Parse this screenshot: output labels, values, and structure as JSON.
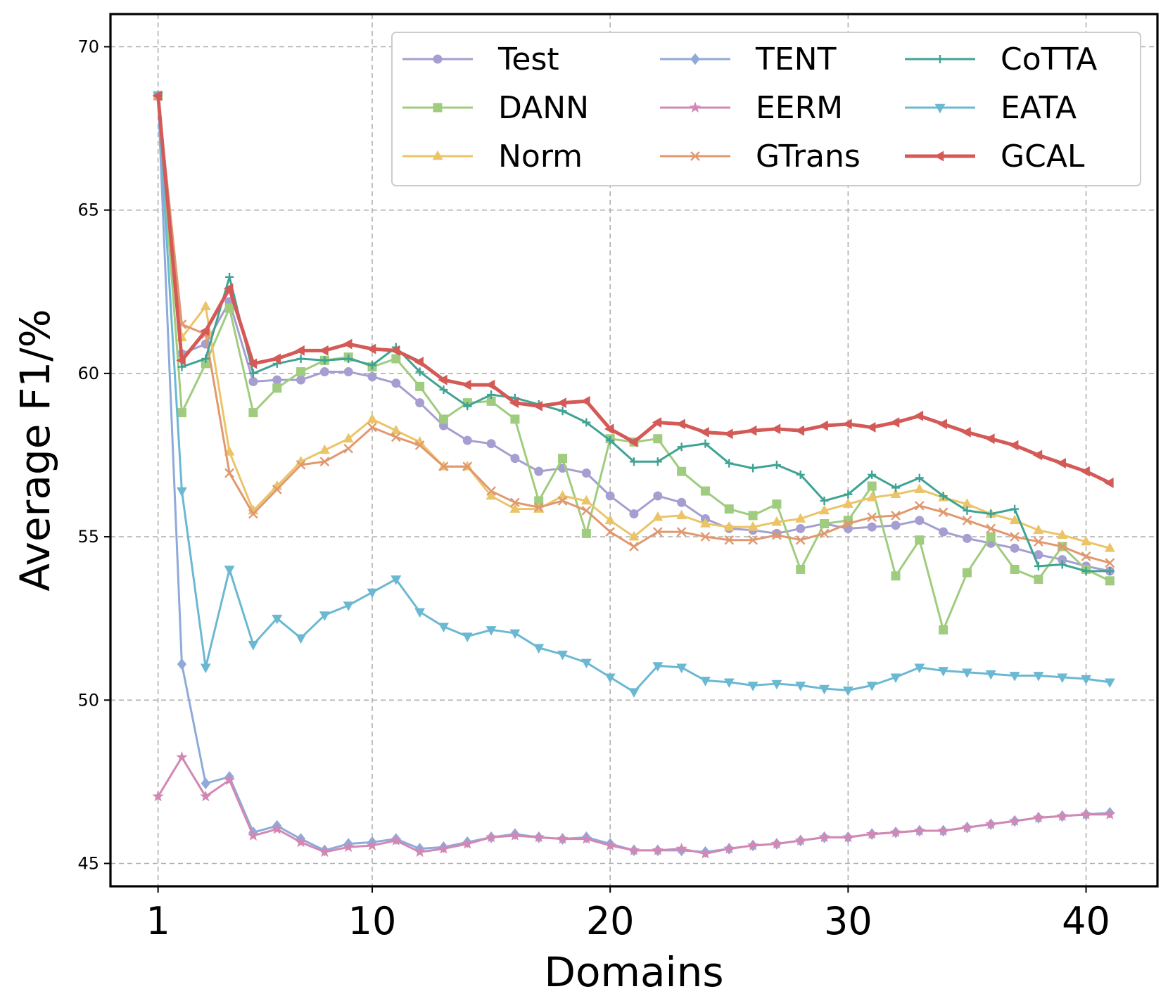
{
  "chart_data": {
    "type": "line",
    "title": "",
    "xlabel": "Domains",
    "ylabel": "Average F1/%",
    "xlim": [
      -1,
      43
    ],
    "ylim": [
      44.3,
      71
    ],
    "xticks": [
      1,
      10,
      20,
      30,
      40
    ],
    "xtick_labels": [
      "1",
      "10",
      "20",
      "30",
      "40"
    ],
    "yticks": [
      45,
      50,
      55,
      60,
      65,
      70
    ],
    "ytick_labels": [
      "45",
      "50",
      "55",
      "60",
      "65",
      "70"
    ],
    "grid": true,
    "legend_position": "top-right",
    "legend_columns": 3,
    "x": [
      1,
      2,
      3,
      4,
      5,
      6,
      7,
      8,
      9,
      10,
      11,
      12,
      13,
      14,
      15,
      16,
      17,
      18,
      19,
      20,
      21,
      22,
      23,
      24,
      25,
      26,
      27,
      28,
      29,
      30,
      31,
      32,
      33,
      34,
      35,
      36,
      37,
      38,
      39,
      40,
      41
    ],
    "series": [
      {
        "name": "Test",
        "color": "#a59ed0",
        "marker": "circle",
        "width": 3,
        "values": [
          68.5,
          60.6,
          60.9,
          62.2,
          59.75,
          59.8,
          59.8,
          60.05,
          60.05,
          59.9,
          59.7,
          59.1,
          58.4,
          57.95,
          57.85,
          57.4,
          57.0,
          57.1,
          56.95,
          56.25,
          55.7,
          56.25,
          56.05,
          55.55,
          55.25,
          55.2,
          55.1,
          55.25,
          55.4,
          55.25,
          55.3,
          55.35,
          55.5,
          55.15,
          54.95,
          54.8,
          54.65,
          54.45,
          54.3,
          54.1,
          53.95
        ]
      },
      {
        "name": "DANN",
        "color": "#9fcc7e",
        "marker": "square",
        "width": 3,
        "values": [
          68.5,
          58.8,
          60.3,
          62.0,
          58.8,
          59.55,
          60.05,
          60.4,
          60.5,
          60.2,
          60.45,
          59.6,
          58.6,
          59.1,
          59.15,
          58.6,
          56.1,
          57.4,
          55.1,
          58.0,
          57.9,
          58.0,
          57.0,
          56.4,
          55.85,
          55.65,
          56.0,
          54.0,
          55.4,
          55.5,
          56.55,
          53.8,
          54.9,
          52.15,
          53.9,
          55.0,
          54.0,
          53.7,
          54.7,
          54.0,
          53.65
        ]
      },
      {
        "name": "Norm",
        "color": "#ebc468",
        "marker": "triangle-up",
        "width": 3,
        "values": [
          68.5,
          61.1,
          62.05,
          57.6,
          55.8,
          56.55,
          57.3,
          57.65,
          58.0,
          58.6,
          58.25,
          57.9,
          57.15,
          57.15,
          56.25,
          55.85,
          55.85,
          56.25,
          56.1,
          55.5,
          55.0,
          55.6,
          55.65,
          55.4,
          55.3,
          55.3,
          55.45,
          55.55,
          55.8,
          56.0,
          56.2,
          56.3,
          56.45,
          56.2,
          56.0,
          55.7,
          55.5,
          55.2,
          55.05,
          54.85,
          54.65
        ]
      },
      {
        "name": "TENT",
        "color": "#8faad9",
        "marker": "diamond",
        "width": 3,
        "values": [
          68.5,
          51.1,
          47.45,
          47.65,
          45.95,
          46.15,
          45.75,
          45.4,
          45.6,
          45.65,
          45.75,
          45.45,
          45.5,
          45.65,
          45.8,
          45.9,
          45.8,
          45.75,
          45.8,
          45.6,
          45.4,
          45.4,
          45.4,
          45.35,
          45.45,
          45.55,
          45.6,
          45.7,
          45.8,
          45.8,
          45.9,
          45.95,
          46.0,
          46.0,
          46.1,
          46.2,
          46.3,
          46.4,
          46.45,
          46.5,
          46.55
        ]
      },
      {
        "name": "EERM",
        "color": "#d288b4",
        "marker": "star",
        "width": 3,
        "values": [
          47.05,
          48.25,
          47.05,
          47.55,
          45.85,
          46.05,
          45.65,
          45.35,
          45.5,
          45.55,
          45.7,
          45.35,
          45.45,
          45.6,
          45.8,
          45.85,
          45.8,
          45.75,
          45.75,
          45.55,
          45.4,
          45.4,
          45.45,
          45.3,
          45.45,
          45.55,
          45.6,
          45.7,
          45.8,
          45.8,
          45.9,
          45.95,
          46.0,
          46.0,
          46.1,
          46.2,
          46.3,
          46.4,
          46.45,
          46.5,
          46.5
        ]
      },
      {
        "name": "GTrans",
        "color": "#e09870",
        "marker": "x",
        "width": 3,
        "values": [
          68.5,
          61.5,
          61.2,
          56.95,
          55.7,
          56.45,
          57.2,
          57.3,
          57.7,
          58.35,
          58.05,
          57.8,
          57.15,
          57.15,
          56.4,
          56.05,
          55.9,
          56.1,
          55.8,
          55.15,
          54.7,
          55.15,
          55.15,
          55.0,
          54.9,
          54.9,
          55.05,
          54.9,
          55.1,
          55.4,
          55.6,
          55.65,
          55.95,
          55.75,
          55.5,
          55.25,
          55.0,
          54.85,
          54.7,
          54.4,
          54.2
        ]
      },
      {
        "name": "CoTTA",
        "color": "#3fa393",
        "marker": "plus",
        "width": 3,
        "values": [
          68.5,
          60.2,
          60.45,
          62.95,
          60.0,
          60.3,
          60.45,
          60.4,
          60.45,
          60.25,
          60.8,
          60.05,
          59.5,
          59.0,
          59.35,
          59.25,
          59.05,
          58.85,
          58.5,
          57.95,
          57.3,
          57.3,
          57.75,
          57.85,
          57.25,
          57.1,
          57.2,
          56.9,
          56.1,
          56.3,
          56.9,
          56.5,
          56.8,
          56.25,
          55.8,
          55.7,
          55.85,
          54.1,
          54.15,
          53.95,
          53.95
        ]
      },
      {
        "name": "EATA",
        "color": "#6bb8d2",
        "marker": "triangle-down",
        "width": 3,
        "values": [
          68.5,
          56.4,
          51.0,
          54.0,
          51.7,
          52.5,
          51.9,
          52.6,
          52.9,
          53.3,
          53.7,
          52.7,
          52.25,
          51.95,
          52.15,
          52.05,
          51.6,
          51.4,
          51.15,
          50.7,
          50.25,
          51.05,
          51.0,
          50.6,
          50.55,
          50.45,
          50.5,
          50.45,
          50.35,
          50.3,
          50.45,
          50.7,
          51.0,
          50.9,
          50.85,
          50.8,
          50.75,
          50.75,
          50.7,
          50.65,
          50.55
        ]
      },
      {
        "name": "GCAL",
        "color": "#d45a57",
        "marker": "triangle-left",
        "width": 5,
        "values": [
          68.5,
          60.4,
          61.3,
          62.6,
          60.3,
          60.45,
          60.7,
          60.7,
          60.9,
          60.75,
          60.7,
          60.35,
          59.8,
          59.65,
          59.65,
          59.1,
          59.0,
          59.1,
          59.15,
          58.3,
          57.9,
          58.5,
          58.45,
          58.2,
          58.15,
          58.25,
          58.3,
          58.25,
          58.4,
          58.45,
          58.35,
          58.5,
          58.7,
          58.45,
          58.2,
          58.0,
          57.8,
          57.5,
          57.25,
          57.0,
          56.65
        ]
      }
    ]
  }
}
